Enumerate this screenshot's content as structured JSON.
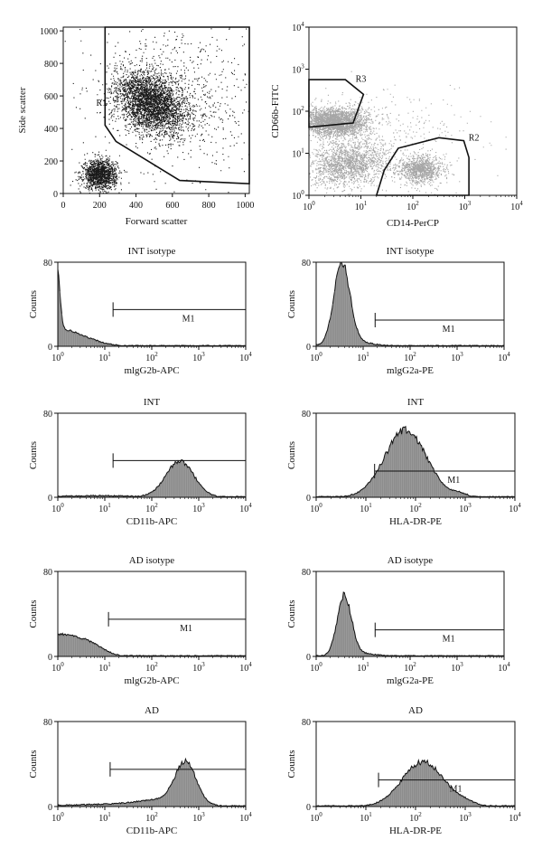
{
  "colors": {
    "axis": "#111111",
    "dot_dark": "#1a1a1a",
    "dot_gray": "#a6a6a6",
    "hist_fill": "#8c8c8c",
    "hist_fill_light": "#b5b5b5",
    "hist_line": "#111111"
  },
  "chart_data": [
    {
      "type": "scatter",
      "id": "fsc-ssc",
      "title": "",
      "xlabel": "Forward scatter",
      "ylabel": "Side scatter",
      "xscale": "linear",
      "yscale": "linear",
      "xlim": [
        0,
        1023
      ],
      "ylim": [
        0,
        1023
      ],
      "xticks": [
        0,
        200,
        400,
        600,
        800,
        1000
      ],
      "yticks": [
        0,
        200,
        400,
        600,
        800,
        1000
      ],
      "point_color": "dark",
      "clusters": [
        {
          "cx": 480,
          "cy": 560,
          "sx": 80,
          "sy": 110,
          "rot": 0.85,
          "n": 3200
        },
        {
          "cx": 200,
          "cy": 120,
          "sx": 45,
          "sy": 45,
          "rot": 0,
          "n": 1400
        },
        {
          "cx": 650,
          "cy": 600,
          "sx": 220,
          "sy": 260,
          "rot": 0.5,
          "n": 700
        }
      ],
      "gates": [
        {
          "label": "R1",
          "label_at": [
            210,
            540
          ],
          "points": [
            [
              230,
              1023
            ],
            [
              1023,
              1023
            ],
            [
              1023,
              60
            ],
            [
              640,
              80
            ],
            [
              290,
              320
            ],
            [
              230,
              420
            ]
          ]
        }
      ]
    },
    {
      "type": "scatter",
      "id": "cd14-cd66b",
      "title": "",
      "xlabel": "CD14-PerCP",
      "ylabel": "CD66b-FITC",
      "xscale": "log",
      "yscale": "log",
      "xlim": [
        1,
        10000
      ],
      "ylim": [
        1,
        10000
      ],
      "xticks": [
        1,
        10,
        100,
        1000,
        10000
      ],
      "yticks": [
        1,
        10,
        100,
        1000,
        10000
      ],
      "point_color": "gray",
      "clusters": [
        {
          "lx": 0.5,
          "ly": 1.75,
          "sx": 0.32,
          "sy": 0.17,
          "rot": 0,
          "n": 2600
        },
        {
          "lx": 0.75,
          "ly": 0.75,
          "sx": 0.38,
          "sy": 0.25,
          "rot": 0.2,
          "n": 1600
        },
        {
          "lx": 2.15,
          "ly": 0.62,
          "sx": 0.2,
          "sy": 0.16,
          "rot": 0,
          "n": 1000
        },
        {
          "lx": 1.5,
          "ly": 1.3,
          "sx": 0.9,
          "sy": 0.6,
          "rot": 0,
          "n": 400
        }
      ],
      "gates": [
        {
          "label": "R3",
          "label_at": [
            10,
            500
          ],
          "points_log": [
            [
              0,
              2.75
            ],
            [
              0.7,
              2.75
            ],
            [
              1.05,
              2.4
            ],
            [
              0.85,
              1.72
            ],
            [
              0,
              1.62
            ]
          ]
        },
        {
          "label": "R2",
          "label_at": [
            1500,
            20
          ],
          "points_log": [
            [
              1.3,
              0
            ],
            [
              1.45,
              0.6
            ],
            [
              1.72,
              1.12
            ],
            [
              2.5,
              1.37
            ],
            [
              2.98,
              1.3
            ],
            [
              3.08,
              0.9
            ],
            [
              3.08,
              0
            ]
          ]
        }
      ]
    },
    {
      "type": "histogram",
      "id": "int-isotype-mlgg2b",
      "title": "INT isotype",
      "xlabel": "mlgG2b-APC",
      "ylabel": "Counts",
      "xscale": "log",
      "xlim": [
        1,
        10000
      ],
      "ylim": [
        0,
        80
      ],
      "xticks": [
        1,
        10,
        100,
        1000,
        10000
      ],
      "yticks": [
        0,
        80
      ],
      "marker": {
        "label": "M1",
        "from": 15,
        "to": 10000,
        "y": 35
      },
      "peaks": [
        {
          "mu": 0,
          "sigma": 0.05,
          "amp": 55
        },
        {
          "mu": 0.05,
          "sigma": 0.32,
          "amp": 14
        },
        {
          "mu": 0.6,
          "sigma": 0.35,
          "amp": 6
        }
      ]
    },
    {
      "type": "histogram",
      "id": "int-isotype-mlgg2a",
      "title": "INT isotype",
      "xlabel": "mlgG2a-PE",
      "ylabel": "Counts",
      "xscale": "log",
      "xlim": [
        1,
        10000
      ],
      "ylim": [
        0,
        80
      ],
      "xticks": [
        1,
        10,
        100,
        1000,
        10000
      ],
      "yticks": [
        0,
        80
      ],
      "marker": {
        "label": "M1",
        "from": 18,
        "to": 10000,
        "y": 25
      },
      "peaks": [
        {
          "mu": 0.55,
          "sigma": 0.17,
          "amp": 76
        },
        {
          "mu": 0.8,
          "sigma": 0.4,
          "amp": 4
        }
      ]
    },
    {
      "type": "histogram",
      "id": "int-cd11b",
      "title": "INT",
      "xlabel": "CD11b-APC",
      "ylabel": "Counts",
      "xscale": "log",
      "xlim": [
        1,
        10000
      ],
      "ylim": [
        0,
        80
      ],
      "xticks": [
        1,
        10,
        100,
        1000,
        10000
      ],
      "yticks": [
        0,
        80
      ],
      "marker": {
        "label": "",
        "from": 15,
        "to": 10000,
        "y": 35
      },
      "peaks": [
        {
          "mu": 2.6,
          "sigma": 0.3,
          "amp": 34
        },
        {
          "mu": 0.8,
          "sigma": 0.8,
          "amp": 1.5
        }
      ]
    },
    {
      "type": "histogram",
      "id": "int-hla-dr",
      "title": "INT",
      "xlabel": "HLA-DR-PE",
      "ylabel": "Counts",
      "xscale": "log",
      "xlim": [
        1,
        10000
      ],
      "ylim": [
        0,
        80
      ],
      "xticks": [
        1,
        10,
        100,
        1000,
        10000
      ],
      "yticks": [
        0,
        80
      ],
      "marker": {
        "label": "M1",
        "from": 15,
        "to": 10000,
        "y": 25
      },
      "peaks": [
        {
          "mu": 1.8,
          "sigma": 0.42,
          "amp": 64
        },
        {
          "mu": 2.9,
          "sigma": 0.15,
          "amp": 3
        }
      ]
    },
    {
      "type": "histogram",
      "id": "ad-isotype-mlgg2b",
      "title": "AD isotype",
      "xlabel": "mlgG2b-APC",
      "ylabel": "Counts",
      "xscale": "log",
      "xlim": [
        1,
        10000
      ],
      "ylim": [
        0,
        80
      ],
      "xticks": [
        1,
        10,
        100,
        1000,
        10000
      ],
      "yticks": [
        0,
        80
      ],
      "marker": {
        "label": "M1",
        "from": 12,
        "to": 10000,
        "y": 35
      },
      "peaks": [
        {
          "mu": 0,
          "sigma": 0.45,
          "amp": 20
        },
        {
          "mu": 0.7,
          "sigma": 0.3,
          "amp": 8
        }
      ]
    },
    {
      "type": "histogram",
      "id": "ad-isotype-mlgg2a",
      "title": "AD isotype",
      "xlabel": "mlgG2a-PE",
      "ylabel": "Counts",
      "xscale": "log",
      "xlim": [
        1,
        10000
      ],
      "ylim": [
        0,
        80
      ],
      "xticks": [
        1,
        10,
        100,
        1000,
        10000
      ],
      "yticks": [
        0,
        80
      ],
      "marker": {
        "label": "M1",
        "from": 18,
        "to": 10000,
        "y": 25
      },
      "peaks": [
        {
          "mu": 0.6,
          "sigma": 0.15,
          "amp": 56
        },
        {
          "mu": 0.9,
          "sigma": 0.35,
          "amp": 3
        }
      ]
    },
    {
      "type": "histogram",
      "id": "ad-cd11b",
      "title": "AD",
      "xlabel": "CD11b-APC",
      "ylabel": "Counts",
      "xscale": "log",
      "xlim": [
        1,
        10000
      ],
      "ylim": [
        0,
        80
      ],
      "xticks": [
        1,
        10,
        100,
        1000,
        10000
      ],
      "yticks": [
        0,
        80
      ],
      "marker": {
        "label": "",
        "from": 13,
        "to": 10000,
        "y": 35
      },
      "peaks": [
        {
          "mu": 2.72,
          "sigma": 0.22,
          "amp": 38
        },
        {
          "mu": 2.3,
          "sigma": 0.55,
          "amp": 6
        },
        {
          "mu": 1.0,
          "sigma": 0.9,
          "amp": 2
        }
      ]
    },
    {
      "type": "histogram",
      "id": "ad-hla-dr",
      "title": "AD",
      "xlabel": "HLA-DR-PE",
      "ylabel": "Counts",
      "xscale": "log",
      "xlim": [
        1,
        10000
      ],
      "ylim": [
        0,
        80
      ],
      "xticks": [
        1,
        10,
        100,
        1000,
        10000
      ],
      "yticks": [
        0,
        80
      ],
      "marker": {
        "label": "M1",
        "from": 18,
        "to": 10000,
        "y": 25
      },
      "peaks": [
        {
          "mu": 2.15,
          "sigma": 0.42,
          "amp": 42
        },
        {
          "mu": 3.0,
          "sigma": 0.2,
          "amp": 3
        }
      ]
    }
  ]
}
